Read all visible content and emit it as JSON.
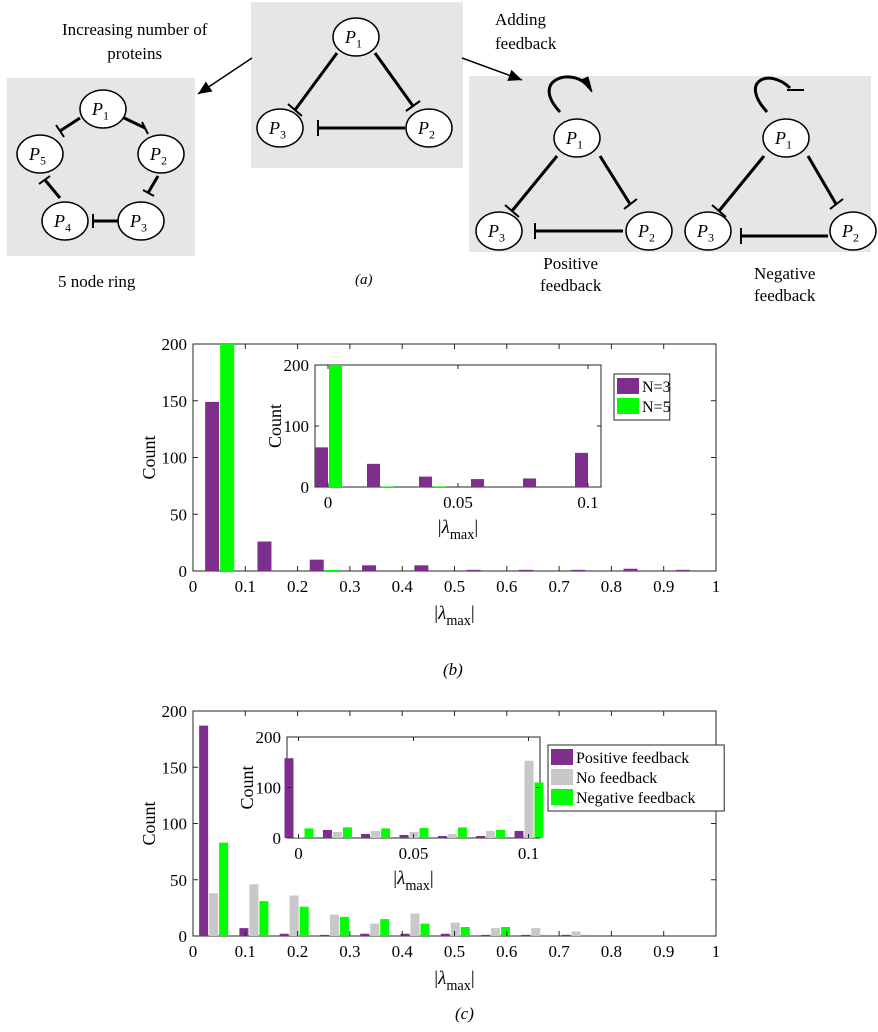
{
  "panel_a": {
    "caption": "(a)",
    "label_increasing": "Increasing number of proteins",
    "label_increasing_line1": "Increasing number of",
    "label_increasing_line2": "proteins",
    "label_adding_line1": "Adding",
    "label_adding_line2": "feedback",
    "label_ring": "5 node ring",
    "label_positive_line1": "Positive",
    "label_positive_line2": "feedback",
    "label_negative_line1": "Negative",
    "label_negative_line2": "feedback",
    "nodes": {
      "p1": "P",
      "p1_sub": "1",
      "p2": "P",
      "p2_sub": "2",
      "p3": "P",
      "p3_sub": "3",
      "p4": "P",
      "p4_sub": "4",
      "p5": "P",
      "p5_sub": "5"
    },
    "colors": {
      "box_fill": "#e6e6e6"
    }
  },
  "panel_b": {
    "caption": "(b)"
  },
  "panel_c": {
    "caption": "(c)"
  },
  "chart_data": [
    {
      "id": "b-main",
      "type": "bar",
      "xlabel": "|λmax|",
      "ylabel": "Count",
      "xlim": [
        0,
        1
      ],
      "ylim": [
        0,
        200
      ],
      "xticks": [
        0,
        0.1,
        0.2,
        0.3,
        0.4,
        0.5,
        0.6,
        0.7,
        0.8,
        0.9,
        1
      ],
      "xtick_labels": [
        "0",
        "0.1",
        "0.2",
        "0.3",
        "0.4",
        "0.5",
        "0.6",
        "0.7",
        "0.8",
        "0.9",
        "1"
      ],
      "yticks": [
        0,
        50,
        100,
        150,
        200
      ],
      "ytick_labels": [
        "0",
        "50",
        "100",
        "150",
        "200"
      ],
      "bin_centers": [
        0.05,
        0.15,
        0.25,
        0.35,
        0.45,
        0.55,
        0.65,
        0.75,
        0.85,
        0.95
      ],
      "series": [
        {
          "name": "N=3",
          "color": "#7e2f8e",
          "values": [
            149,
            26,
            10,
            5,
            5,
            1,
            1,
            1,
            2,
            1
          ]
        },
        {
          "name": "N=5",
          "color": "#00ff00",
          "values": [
            200,
            0,
            1,
            0,
            0,
            0,
            0,
            0,
            0,
            0
          ]
        }
      ],
      "legend": {
        "placement": "top-right",
        "entries": [
          "N=3",
          "N=5"
        ]
      }
    },
    {
      "id": "b-inset",
      "type": "bar",
      "xlabel": "|λmax|",
      "ylabel": "Count",
      "xlim": [
        -0.005,
        0.105
      ],
      "ylim": [
        0,
        200
      ],
      "xticks": [
        0,
        0.05,
        0.1
      ],
      "xtick_labels": [
        "0",
        "0.05",
        "0.1"
      ],
      "yticks": [
        0,
        100,
        200
      ],
      "ytick_labels": [
        "0",
        "100",
        "200"
      ],
      "bin_centers": [
        0,
        0.02,
        0.04,
        0.06,
        0.08,
        0.1
      ],
      "series": [
        {
          "name": "N=3",
          "color": "#7e2f8e",
          "values": [
            65,
            38,
            17,
            13,
            14,
            56
          ]
        },
        {
          "name": "N=5",
          "color": "#00ff00",
          "values": [
            200,
            1,
            1,
            0,
            0,
            0
          ]
        }
      ]
    },
    {
      "id": "c-main",
      "type": "bar",
      "xlabel": "|λmax|",
      "ylabel": "Count",
      "xlim": [
        0,
        1
      ],
      "ylim": [
        0,
        200
      ],
      "xticks": [
        0,
        0.1,
        0.2,
        0.3,
        0.4,
        0.5,
        0.6,
        0.7,
        0.8,
        0.9,
        1
      ],
      "xtick_labels": [
        "0",
        "0.1",
        "0.2",
        "0.3",
        "0.4",
        "0.5",
        "0.6",
        "0.7",
        "0.8",
        "0.9",
        "1"
      ],
      "yticks": [
        0,
        50,
        100,
        150,
        200
      ],
      "ytick_labels": [
        "0",
        "50",
        "100",
        "150",
        "200"
      ],
      "bin_centers": [
        0.0385,
        0.1155,
        0.1925,
        0.2695,
        0.3465,
        0.4235,
        0.5005,
        0.5775,
        0.6545,
        0.7315
      ],
      "series": [
        {
          "name": "Positive feedback",
          "color": "#7e2f8e",
          "values": [
            187,
            7,
            2,
            1,
            2,
            2,
            2,
            1,
            1,
            1
          ]
        },
        {
          "name": "No feedback",
          "color": "#c8c8c8",
          "values": [
            38,
            46,
            36,
            19,
            11,
            20,
            12,
            7,
            7,
            4
          ]
        },
        {
          "name": "Negative feedback",
          "color": "#00ff00",
          "values": [
            83,
            31,
            26,
            17,
            15,
            11,
            8,
            8,
            1,
            1
          ]
        }
      ],
      "legend": {
        "placement": "right",
        "entries": [
          "Positive feedback",
          "No feedback",
          "Negative feedback"
        ]
      }
    },
    {
      "id": "c-inset",
      "type": "bar",
      "xlabel": "|λmax|",
      "ylabel": "Count",
      "xlim": [
        -0.005,
        0.105
      ],
      "ylim": [
        0,
        200
      ],
      "xticks": [
        0,
        0.05,
        0.1
      ],
      "xtick_labels": [
        "0",
        "0.05",
        "0.1"
      ],
      "yticks": [
        0,
        100,
        200
      ],
      "ytick_labels": [
        "0",
        "100",
        "200"
      ],
      "bin_centers": [
        0,
        0.0167,
        0.0333,
        0.05,
        0.0667,
        0.0833,
        0.1
      ],
      "series": [
        {
          "name": "Positive feedback",
          "color": "#7e2f8e",
          "values": [
            158,
            16,
            8,
            6,
            4,
            4,
            14
          ]
        },
        {
          "name": "No feedback",
          "color": "#c8c8c8",
          "values": [
            2,
            12,
            14,
            12,
            8,
            14,
            153
          ]
        },
        {
          "name": "Negative feedback",
          "color": "#00ff00",
          "values": [
            19,
            21,
            19,
            20,
            21,
            16,
            110
          ]
        }
      ]
    }
  ]
}
